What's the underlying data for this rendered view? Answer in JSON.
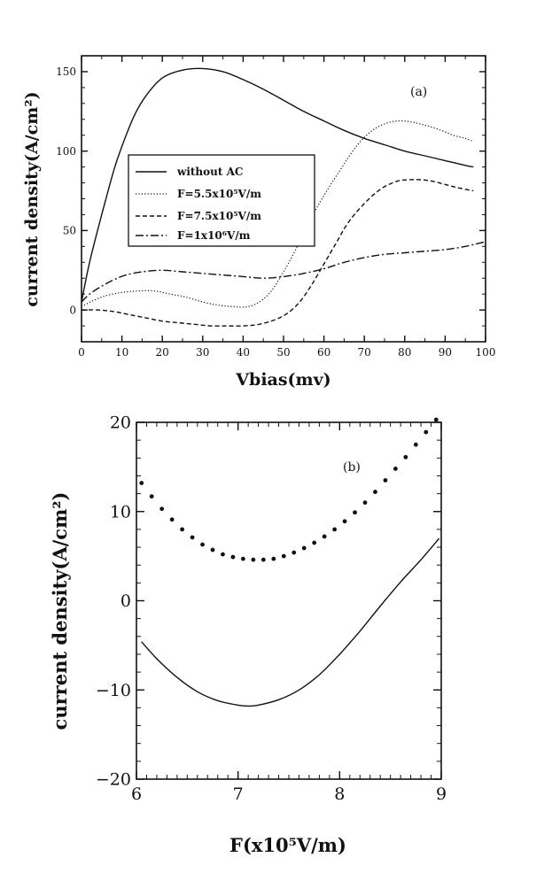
{
  "chart_data": [
    {
      "type": "line",
      "panel_label": "(a)",
      "xlabel": "Vbias(mv)",
      "ylabel": "current density(A/cm²)",
      "xlim": [
        0,
        100
      ],
      "ylim": [
        -20,
        160
      ],
      "xticks": [
        0,
        10,
        20,
        30,
        40,
        50,
        60,
        70,
        80,
        90,
        100
      ],
      "yticks": [
        0,
        50,
        100,
        150
      ],
      "legend_position": "middle-left",
      "series": [
        {
          "name": "without AC",
          "style": "solid",
          "points": [
            [
              0,
              5
            ],
            [
              2,
              30
            ],
            [
              5,
              60
            ],
            [
              8,
              88
            ],
            [
              10,
              103
            ],
            [
              13,
              122
            ],
            [
              16,
              135
            ],
            [
              20,
              146
            ],
            [
              25,
              151
            ],
            [
              30,
              152
            ],
            [
              35,
              150
            ],
            [
              40,
              145
            ],
            [
              45,
              139
            ],
            [
              50,
              132
            ],
            [
              55,
              125
            ],
            [
              60,
              119
            ],
            [
              65,
              113
            ],
            [
              70,
              108
            ],
            [
              75,
              104
            ],
            [
              80,
              100
            ],
            [
              85,
              97
            ],
            [
              90,
              94
            ],
            [
              95,
              91
            ],
            [
              97,
              90
            ]
          ]
        },
        {
          "name": "F=5.5x10⁵V/m",
          "style": "dotted",
          "points": [
            [
              0,
              2
            ],
            [
              3,
              6
            ],
            [
              6,
              9
            ],
            [
              10,
              11
            ],
            [
              14,
              12
            ],
            [
              18,
              12
            ],
            [
              22,
              10
            ],
            [
              26,
              8
            ],
            [
              30,
              5
            ],
            [
              34,
              3
            ],
            [
              38,
              2
            ],
            [
              41,
              2
            ],
            [
              44,
              5
            ],
            [
              47,
              12
            ],
            [
              50,
              24
            ],
            [
              53,
              38
            ],
            [
              56,
              54
            ],
            [
              60,
              72
            ],
            [
              64,
              88
            ],
            [
              68,
              103
            ],
            [
              72,
              113
            ],
            [
              76,
              118
            ],
            [
              80,
              119
            ],
            [
              84,
              117
            ],
            [
              88,
              114
            ],
            [
              92,
              110
            ],
            [
              95,
              108
            ],
            [
              97,
              106
            ]
          ]
        },
        {
          "name": "F=7.5x10⁵V/m",
          "style": "dashed",
          "points": [
            [
              0,
              0
            ],
            [
              4,
              0
            ],
            [
              8,
              -1
            ],
            [
              12,
              -3
            ],
            [
              16,
              -5
            ],
            [
              20,
              -7
            ],
            [
              24,
              -8
            ],
            [
              28,
              -9
            ],
            [
              32,
              -10
            ],
            [
              36,
              -10
            ],
            [
              40,
              -10
            ],
            [
              44,
              -9
            ],
            [
              48,
              -6
            ],
            [
              51,
              -2
            ],
            [
              54,
              5
            ],
            [
              57,
              16
            ],
            [
              60,
              29
            ],
            [
              63,
              42
            ],
            [
              66,
              55
            ],
            [
              70,
              67
            ],
            [
              74,
              76
            ],
            [
              78,
              81
            ],
            [
              81,
              82
            ],
            [
              84,
              82
            ],
            [
              87,
              81
            ],
            [
              90,
              79
            ],
            [
              93,
              77
            ],
            [
              97,
              75
            ]
          ]
        },
        {
          "name": "F=1x10⁶V/m",
          "style": "dashdot",
          "points": [
            [
              0,
              5
            ],
            [
              2,
              10
            ],
            [
              5,
              15
            ],
            [
              8,
              19
            ],
            [
              11,
              22
            ],
            [
              15,
              24
            ],
            [
              20,
              25
            ],
            [
              25,
              24
            ],
            [
              30,
              23
            ],
            [
              35,
              22
            ],
            [
              40,
              21
            ],
            [
              45,
              20
            ],
            [
              50,
              21
            ],
            [
              55,
              23
            ],
            [
              60,
              26
            ],
            [
              65,
              30
            ],
            [
              70,
              33
            ],
            [
              75,
              35
            ],
            [
              80,
              36
            ],
            [
              85,
              37
            ],
            [
              90,
              38
            ],
            [
              95,
              40
            ],
            [
              100,
              43
            ]
          ]
        }
      ]
    },
    {
      "type": "line",
      "panel_label": "(b)",
      "xlabel": "F(x10⁵V/m)",
      "ylabel": "current density(A/cm²)",
      "xlim": [
        6,
        9
      ],
      "ylim": [
        -20,
        20
      ],
      "xticks": [
        6,
        7,
        8,
        9
      ],
      "yticks": [
        -20,
        -10,
        0,
        10,
        20
      ],
      "series": [
        {
          "name": "dotted",
          "style": "dots",
          "points": [
            [
              6.05,
              13.2
            ],
            [
              6.15,
              11.7
            ],
            [
              6.25,
              10.3
            ],
            [
              6.35,
              9.1
            ],
            [
              6.45,
              8.0
            ],
            [
              6.55,
              7.1
            ],
            [
              6.65,
              6.3
            ],
            [
              6.75,
              5.7
            ],
            [
              6.85,
              5.2
            ],
            [
              6.95,
              4.9
            ],
            [
              7.05,
              4.7
            ],
            [
              7.15,
              4.6
            ],
            [
              7.25,
              4.6
            ],
            [
              7.35,
              4.7
            ],
            [
              7.45,
              5.0
            ],
            [
              7.55,
              5.4
            ],
            [
              7.65,
              5.9
            ],
            [
              7.75,
              6.5
            ],
            [
              7.85,
              7.2
            ],
            [
              7.95,
              8.0
            ],
            [
              8.05,
              8.9
            ],
            [
              8.15,
              9.9
            ],
            [
              8.25,
              11.0
            ],
            [
              8.35,
              12.2
            ],
            [
              8.45,
              13.5
            ],
            [
              8.55,
              14.8
            ],
            [
              8.65,
              16.1
            ],
            [
              8.75,
              17.5
            ],
            [
              8.85,
              18.9
            ],
            [
              8.95,
              20.3
            ]
          ]
        },
        {
          "name": "solid",
          "style": "solid",
          "points": [
            [
              6.05,
              -4.6
            ],
            [
              6.2,
              -6.5
            ],
            [
              6.4,
              -8.6
            ],
            [
              6.6,
              -10.2
            ],
            [
              6.8,
              -11.2
            ],
            [
              7.0,
              -11.7
            ],
            [
              7.1,
              -11.8
            ],
            [
              7.2,
              -11.7
            ],
            [
              7.4,
              -11.1
            ],
            [
              7.6,
              -10.0
            ],
            [
              7.8,
              -8.3
            ],
            [
              8.0,
              -6.0
            ],
            [
              8.2,
              -3.4
            ],
            [
              8.4,
              -0.6
            ],
            [
              8.6,
              2.1
            ],
            [
              8.8,
              4.6
            ],
            [
              8.98,
              7.0
            ]
          ]
        }
      ]
    }
  ]
}
